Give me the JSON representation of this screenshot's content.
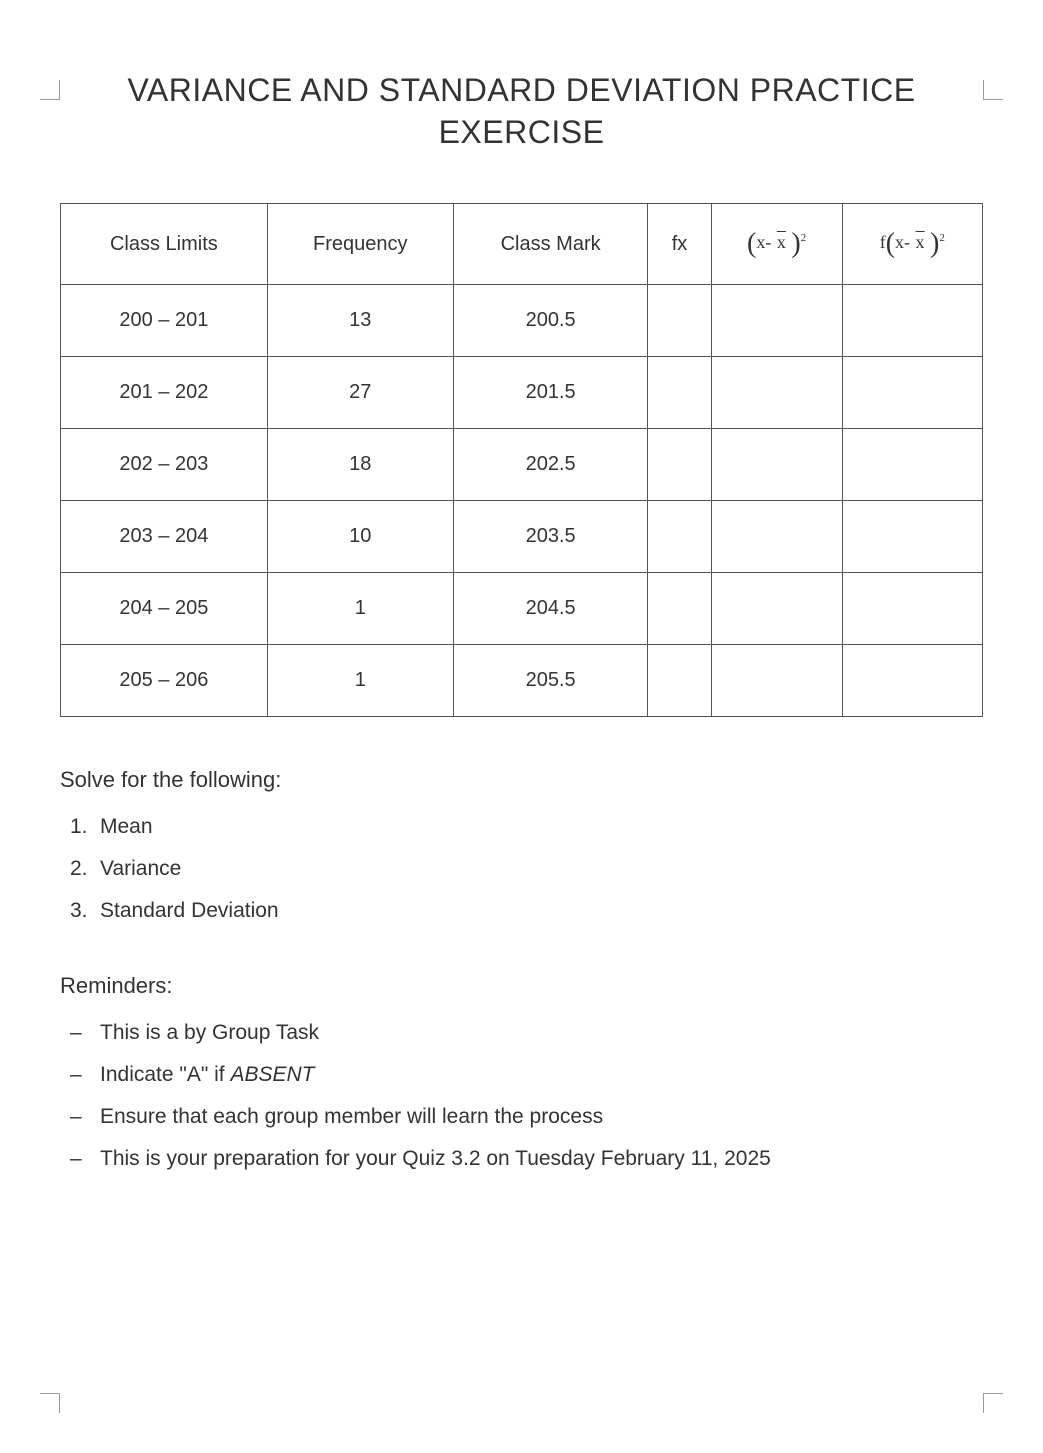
{
  "title": "VARIANCE AND STANDARD DEVIATION PRACTICE EXERCISE",
  "table": {
    "columns": [
      "Class Limits",
      "Frequency",
      "Class Mark",
      "fx",
      "(x-x̄)²",
      "f(x-x̄)²"
    ],
    "col_widths": [
      "16.6%",
      "16.6%",
      "16.6%",
      "16.6%",
      "16.6%",
      "16.6%"
    ],
    "border_color": "#555555",
    "header_row": {
      "class_limits": "Class Limits",
      "frequency": "Frequency",
      "class_mark": "Class Mark",
      "fx": "fx"
    },
    "rows": [
      {
        "class_limits": "200 – 201",
        "frequency": "13",
        "class_mark": "200.5",
        "fx": "",
        "sq_dev": "",
        "f_sq_dev": ""
      },
      {
        "class_limits": "201 – 202",
        "frequency": "27",
        "class_mark": "201.5",
        "fx": "",
        "sq_dev": "",
        "f_sq_dev": ""
      },
      {
        "class_limits": "202 – 203",
        "frequency": "18",
        "class_mark": "202.5",
        "fx": "",
        "sq_dev": "",
        "f_sq_dev": ""
      },
      {
        "class_limits": "203 – 204",
        "frequency": "10",
        "class_mark": "203.5",
        "fx": "",
        "sq_dev": "",
        "f_sq_dev": ""
      },
      {
        "class_limits": "204 – 205",
        "frequency": "1",
        "class_mark": "204.5",
        "fx": "",
        "sq_dev": "",
        "f_sq_dev": ""
      },
      {
        "class_limits": "205 – 206",
        "frequency": "1",
        "class_mark": "205.5",
        "fx": "",
        "sq_dev": "",
        "f_sq_dev": ""
      }
    ]
  },
  "solve_heading": "Solve for the following:",
  "solve_items": [
    {
      "num": "1",
      "text": "Mean"
    },
    {
      "num": "2",
      "text": "Variance"
    },
    {
      "num": "3",
      "text": "Standard Deviation"
    }
  ],
  "reminders_heading": "Reminders:",
  "reminders_items": [
    {
      "text": "This is a by Group Task"
    },
    {
      "text": "Indicate \"A\" if ",
      "italic_suffix": "ABSENT"
    },
    {
      "text": "Ensure that each group member will learn the process"
    },
    {
      "text": "This is your preparation for your Quiz 3.2 on Tuesday February 11, 2025"
    }
  ],
  "colors": {
    "text": "#333333",
    "background": "#ffffff",
    "border": "#555555",
    "crop_mark": "#999999"
  },
  "typography": {
    "title_fontsize": 32,
    "body_fontsize": 21,
    "table_fontsize": 20,
    "font_family": "Segoe UI, Arial, sans-serif"
  }
}
